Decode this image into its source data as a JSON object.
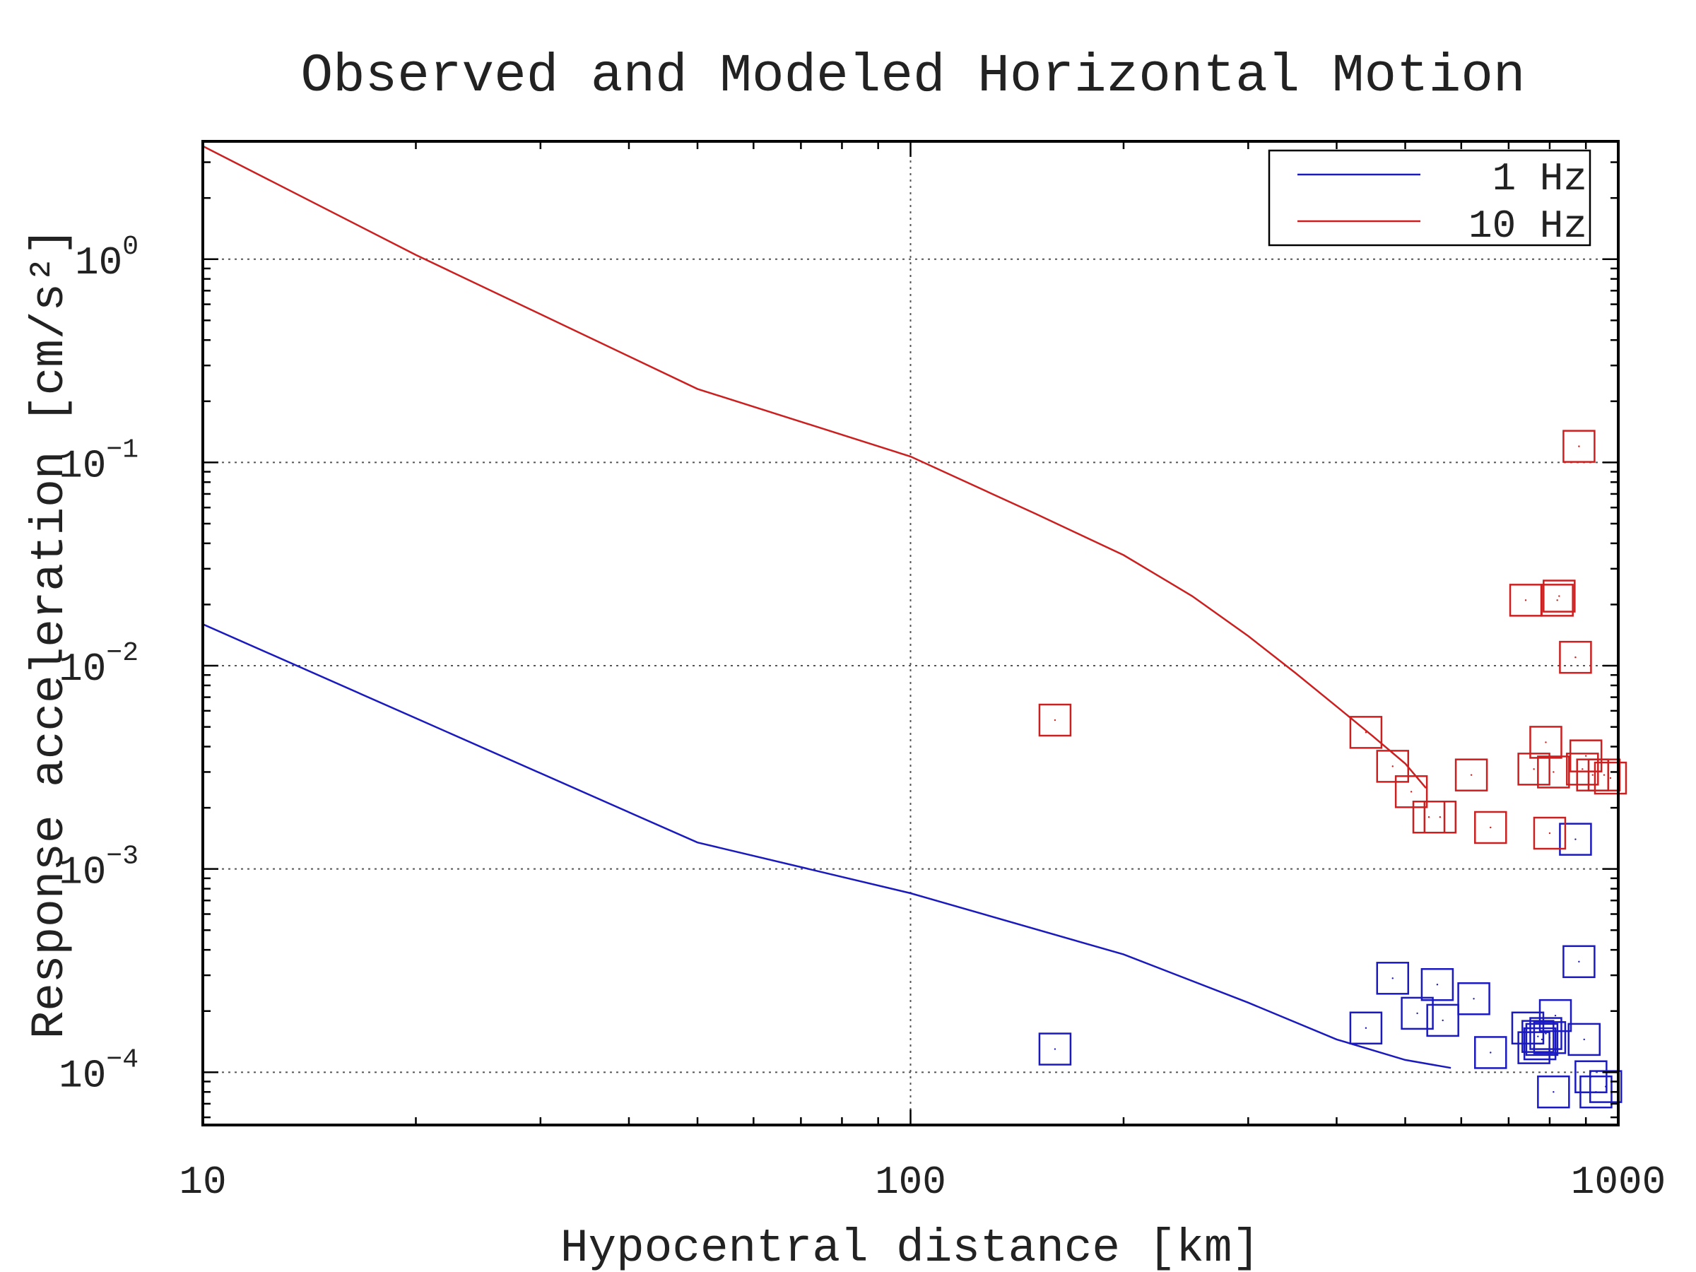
{
  "chart_data": {
    "type": "line",
    "title": "Observed and Modeled Horizontal Motion",
    "xlabel": "Hypocentral distance [km]",
    "ylabel": "Response acceleration [cm/s²]",
    "x_scale": "log",
    "y_scale": "log",
    "xlim": [
      10,
      1000
    ],
    "ylim": [
      5.5e-05,
      3.8
    ],
    "grid": true,
    "legend_position": "top-right",
    "x_ticks": [
      {
        "value": 10,
        "label": "10"
      },
      {
        "value": 100,
        "label": "100"
      },
      {
        "value": 1000,
        "label": "1000"
      }
    ],
    "y_ticks": [
      {
        "value": 0.0001,
        "base": "10",
        "exp": "−4"
      },
      {
        "value": 0.001,
        "base": "10",
        "exp": "−3"
      },
      {
        "value": 0.01,
        "base": "10",
        "exp": "−2"
      },
      {
        "value": 0.1,
        "base": "10",
        "exp": "−1"
      },
      {
        "value": 1,
        "base": "10",
        "exp": "0"
      }
    ],
    "series": [
      {
        "name": "1 Hz",
        "color": "#1a1abf",
        "kind": "model-line",
        "x": [
          10,
          50,
          100,
          200,
          300,
          400,
          500,
          580
        ],
        "y": [
          0.016,
          0.00135,
          0.00076,
          0.00038,
          0.00022,
          0.000145,
          0.000115,
          0.000105
        ]
      },
      {
        "name": "10 Hz",
        "color": "#cc1f1f",
        "kind": "model-line",
        "x": [
          10,
          20,
          50,
          100,
          150,
          200,
          250,
          300,
          350,
          400,
          450,
          500,
          535
        ],
        "y": [
          3.6,
          1.05,
          0.23,
          0.107,
          0.056,
          0.035,
          0.022,
          0.014,
          0.0092,
          0.0063,
          0.0045,
          0.0033,
          0.0025
        ]
      }
    ],
    "observations": [
      {
        "color": "#1a1abf",
        "x": [
          160,
          440,
          480,
          520,
          555,
          565,
          625,
          660,
          745,
          760,
          770,
          775,
          780,
          790,
          800,
          810,
          815,
          870,
          880,
          895,
          915,
          930,
          960
        ],
        "y": [
          0.00013,
          0.000165,
          0.00029,
          0.000195,
          0.00027,
          0.00018,
          0.00023,
          0.000125,
          0.000165,
          0.000132,
          0.00015,
          0.000138,
          0.000145,
          0.000155,
          0.000148,
          8e-05,
          0.00019,
          0.0014,
          0.00035,
          0.000145,
          9.5e-05,
          8e-05,
          8.5e-05
        ]
      },
      {
        "color": "#cc1f1f",
        "x": [
          160,
          440,
          480,
          510,
          540,
          560,
          620,
          660,
          740,
          760,
          790,
          800,
          810,
          820,
          825,
          870,
          880,
          890,
          900,
          920,
          955,
          975
        ],
        "y": [
          0.0054,
          0.0047,
          0.0032,
          0.0024,
          0.0018,
          0.0018,
          0.0029,
          0.0016,
          0.021,
          0.0031,
          0.0042,
          0.0015,
          0.003,
          0.021,
          0.022,
          0.011,
          0.12,
          0.0031,
          0.0036,
          0.0029,
          0.0029,
          0.0028
        ]
      }
    ]
  }
}
